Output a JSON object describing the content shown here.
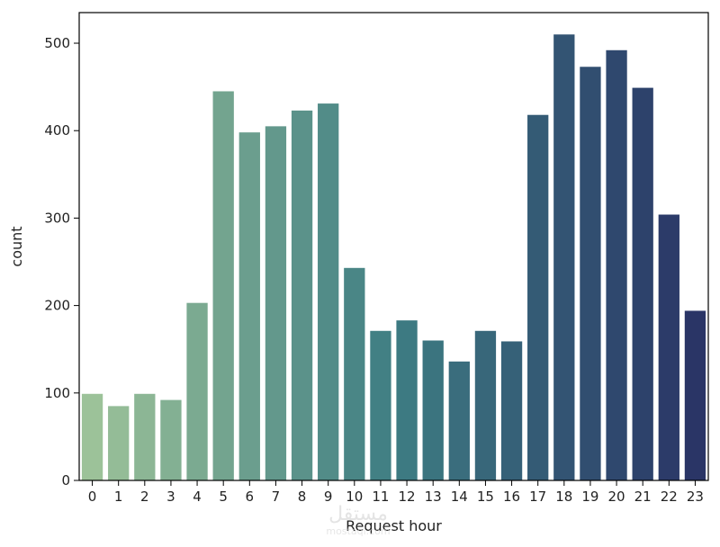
{
  "chart_data": {
    "type": "bar",
    "title": "",
    "xlabel": "Request hour",
    "ylabel": "count",
    "categories": [
      "0",
      "1",
      "2",
      "3",
      "4",
      "5",
      "6",
      "7",
      "8",
      "9",
      "10",
      "11",
      "12",
      "13",
      "14",
      "15",
      "16",
      "17",
      "18",
      "19",
      "20",
      "21",
      "22",
      "23"
    ],
    "values": [
      99,
      85,
      99,
      92,
      203,
      445,
      398,
      405,
      423,
      431,
      243,
      171,
      183,
      160,
      136,
      171,
      159,
      418,
      510,
      473,
      492,
      449,
      304,
      194
    ],
    "ylim": [
      0,
      535
    ],
    "yticks": [
      0,
      100,
      200,
      300,
      400,
      500
    ],
    "grid": false,
    "legend": "none",
    "palette": {
      "start": "#9cc299",
      "mid": "#3e7d83",
      "end": "#2a3566"
    }
  },
  "watermark": {
    "text": "مستقل",
    "sub": "mostaql.com"
  }
}
